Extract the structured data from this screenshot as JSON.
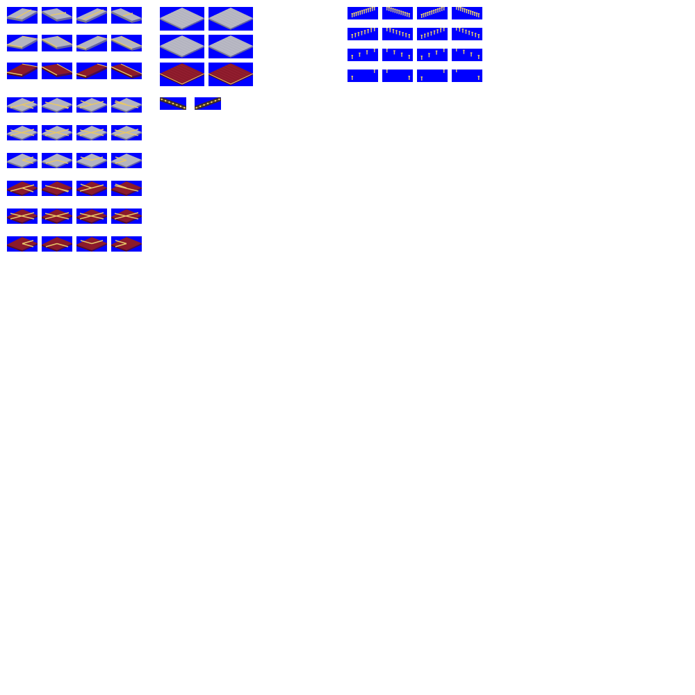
{
  "sheet": {
    "background": "#ffffff",
    "key_color": "#0000ff",
    "colors": {
      "concrete_top": "#b4b4c0",
      "concrete_side": "#7c7c88",
      "carpet_top": "#8b1a2a",
      "carpet_side": "#5a0f1a",
      "trim": "#e6c66a",
      "trim_dark": "#8a6a2a",
      "light_on": "#f0d060"
    }
  },
  "groups": [
    {
      "name": "straight-pieces",
      "rows": [
        {
          "material": "concrete",
          "variant": "straight-center-line"
        },
        {
          "material": "concrete",
          "variant": "straight-side-line"
        },
        {
          "material": "carpet",
          "variant": "straight-side-line"
        }
      ]
    },
    {
      "name": "junction-pieces",
      "rows": [
        {
          "material": "concrete",
          "variant": "t-junction"
        },
        {
          "material": "concrete",
          "variant": "crossing"
        },
        {
          "material": "concrete",
          "variant": "corner"
        },
        {
          "material": "carpet",
          "variant": "t-junction"
        },
        {
          "material": "carpet",
          "variant": "crossing"
        },
        {
          "material": "carpet",
          "variant": "corner"
        }
      ]
    },
    {
      "name": "plaza-pieces",
      "rows": [
        {
          "material": "concrete",
          "variant": "plaza"
        },
        {
          "material": "concrete",
          "variant": "plaza"
        },
        {
          "material": "carpet",
          "variant": "plaza"
        }
      ]
    },
    {
      "name": "light-strip-pieces",
      "count": 2
    },
    {
      "name": "runway-light-pieces",
      "rows": [
        {
          "density": "full"
        },
        {
          "density": "dense"
        },
        {
          "density": "sparse"
        },
        {
          "density": "minimal"
        }
      ]
    }
  ]
}
